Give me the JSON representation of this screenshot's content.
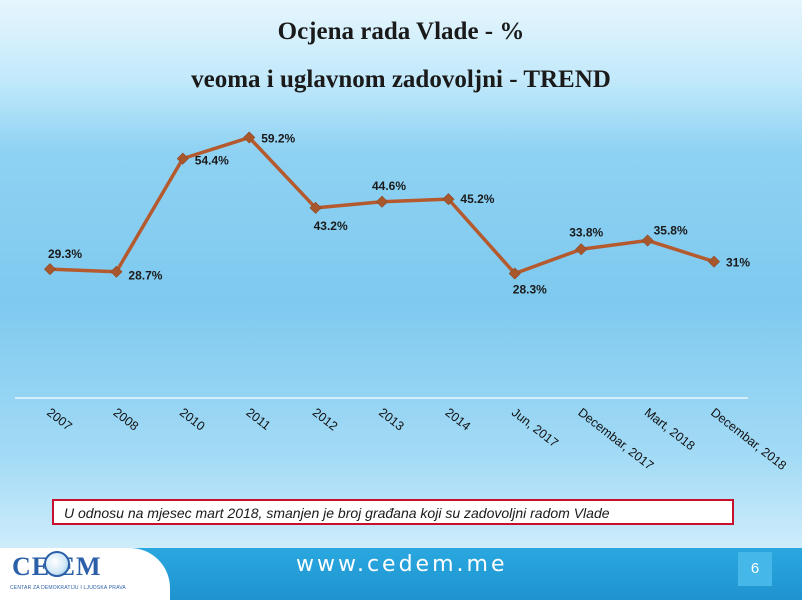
{
  "slide": {
    "title_line1": "Ocjena rada Vlade - %",
    "title_line2": "veoma i uglavnom zadovoljni - TREND",
    "note": "U odnosu na mjesec mart 2018, smanjen je broj građana koji su zadovoljni radom Vlade",
    "footer_url": "www.cedem.me",
    "page_number": "6"
  },
  "logo": {
    "text": "CE EM",
    "subtitle": "CENTAR ZA DEMOKRATIJU I LJUDSKA PRAVA"
  },
  "colors": {
    "line": "#b45a2e",
    "marker": "#a8572c",
    "note_border": "#c8102e",
    "footer": "#1f93cf"
  },
  "chart_data": {
    "type": "line",
    "title": "Ocjena rada Vlade - % veoma i uglavnom zadovoljni - TREND",
    "categories": [
      "2007",
      "2008",
      "2010",
      "2011",
      "2012",
      "2013",
      "2014",
      "Jun, 2017",
      "Decembar, 2017",
      "Mart, 2018",
      "Decembar, 2018"
    ],
    "series": [
      {
        "values": [
          29.3,
          28.7,
          54.4,
          59.2,
          43.2,
          44.6,
          45.2,
          28.3,
          33.8,
          35.8,
          31
        ],
        "labels": [
          "29.3%",
          "28.7%",
          "54.4%",
          "59.2%",
          "43.2%",
          "44.6%",
          "45.2%",
          "28.3%",
          "33.8%",
          "35.8%",
          "31%"
        ]
      }
    ],
    "xlabel": "",
    "ylabel": "",
    "legend": "none",
    "grid": false
  }
}
